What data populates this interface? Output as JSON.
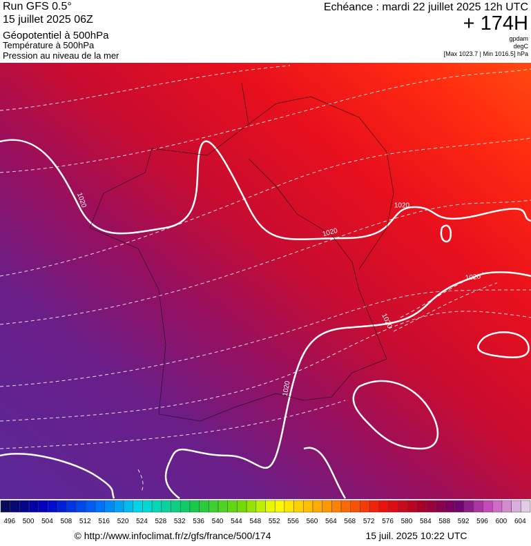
{
  "header": {
    "run": "Run GFS 0.5°",
    "date": "15 juillet 2025 06Z",
    "field1": "Géopotentiel à 500hPa",
    "field2": "Température à 500hPa",
    "field3": "Pression au niveau de la mer",
    "echeance": "Echéance : mardi 22 juillet 2025 12h UTC",
    "lead": "+ 174H",
    "unit1": "gpdam",
    "unit2": "degC",
    "range": "[Max 1023.7 | Min 1016.5] hPa"
  },
  "map": {
    "isobar_labels": [
      1020,
      1020,
      1020,
      1020,
      1020,
      1020
    ]
  },
  "colorbar": {
    "labels": [
      496,
      500,
      504,
      508,
      512,
      516,
      520,
      524,
      528,
      532,
      536,
      540,
      544,
      548,
      552,
      556,
      560,
      564,
      568,
      572,
      576,
      580,
      584,
      588,
      592,
      596,
      600,
      604
    ]
  },
  "footer": {
    "url": "© http://www.infoclimat.fr/z/gfs/france/500/174",
    "timestamp": "15 juil. 2025 10:22 UTC"
  }
}
